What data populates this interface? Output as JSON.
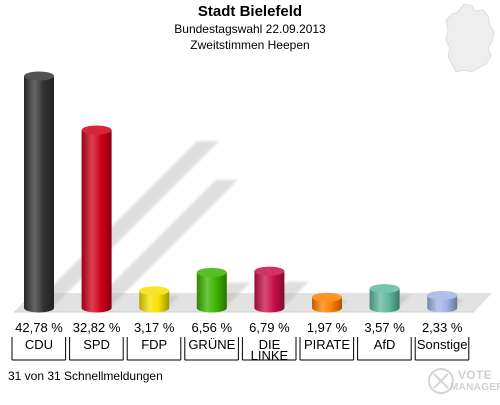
{
  "header": {
    "title": "Stadt Bielefeld",
    "subtitle1": "Bundestagswahl 22.09.2013",
    "subtitle2": "Zweitstimmen Heepen"
  },
  "footer": {
    "note": "31 von 31 Schnellmeldungen"
  },
  "logo": {
    "line1": "VOTE",
    "line2": "MANAGER"
  },
  "chart_data": {
    "type": "bar",
    "title": "Stadt Bielefeld",
    "categories": [
      "CDU",
      "SPD",
      "FDP",
      "GRÜNE",
      "DIE LINKE",
      "PIRATE",
      "AfD",
      "Sonstige"
    ],
    "values": [
      42.78,
      32.82,
      3.17,
      6.56,
      6.79,
      1.97,
      3.57,
      2.33
    ],
    "value_labels": [
      "42,78 %",
      "32,82 %",
      "3,17 %",
      "6,56 %",
      "6,79 %",
      "1,97 %",
      "3,57 %",
      "2,33 %"
    ],
    "colors": [
      "#333333",
      "#d0001a",
      "#f5e100",
      "#3cb400",
      "#c8104a",
      "#ff8000",
      "#5fb89e",
      "#a0b4e6"
    ],
    "ylim": [
      0,
      45
    ],
    "grid": false
  }
}
